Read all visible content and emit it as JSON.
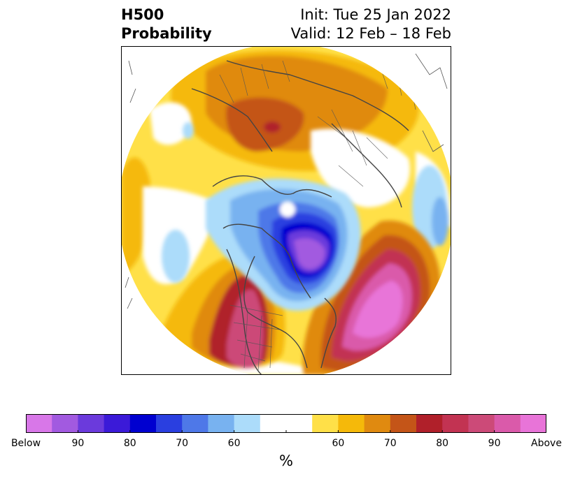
{
  "header": {
    "field": "H500",
    "product": "Probability",
    "init": "Init: Tue 25 Jan 2022",
    "valid": "Valid: 12 Feb – 18 Feb"
  },
  "colorbar": {
    "colors": [
      "#d877e8",
      "#a25ae0",
      "#6b3adc",
      "#3b1ad8",
      "#0000d0",
      "#2a3fe0",
      "#4e78e8",
      "#78b2f0",
      "#acdcfa",
      "#ffffff",
      "#ffffff",
      "#ffe048",
      "#f5b90a",
      "#e08a10",
      "#c45518",
      "#b0202a",
      "#c23352",
      "#cc4a78",
      "#da5aaa",
      "#e874d8"
    ],
    "ticks": [
      "Below",
      "90",
      "80",
      "70",
      "60",
      "",
      "60",
      "70",
      "80",
      "90",
      "Above"
    ],
    "unit": "%"
  },
  "map": {
    "projection": "north-polar-stereographic",
    "features": [
      "Above-normal heights: western North America",
      "Above-normal heights: North Atlantic",
      "Above-normal heights: Eurasia",
      "Below-normal heights: Hudson Bay / eastern Canada",
      "Below-normal heights: Arctic Ocean"
    ]
  }
}
